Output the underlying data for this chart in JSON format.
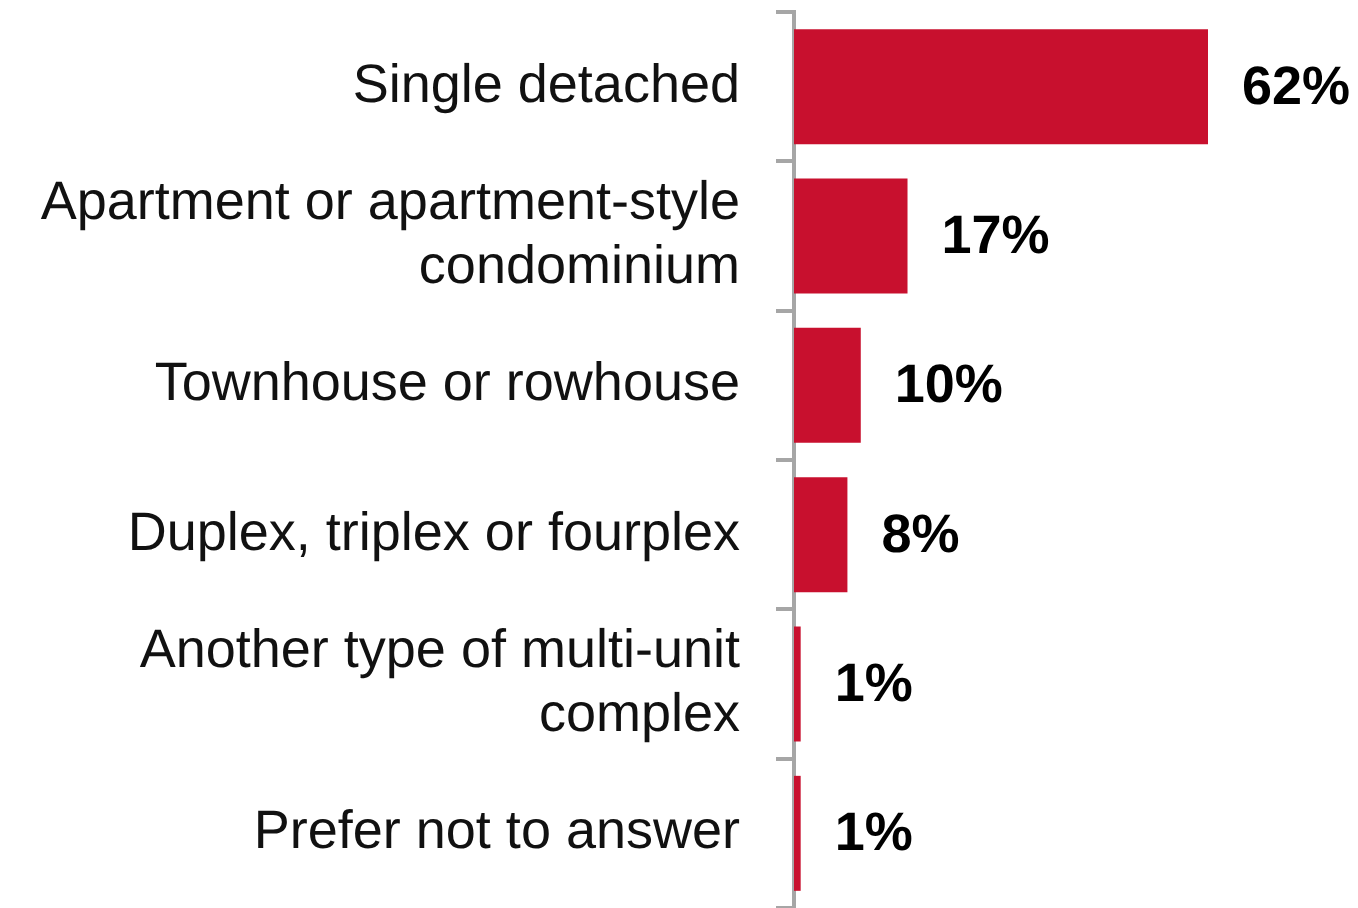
{
  "chart_data": {
    "type": "bar",
    "orientation": "horizontal",
    "categories": [
      "Single detached",
      "Apartment or apartment-style condominium",
      "Townhouse or rowhouse",
      "Duplex, triplex or fourplex",
      "Another type of multi-unit complex",
      "Prefer not to answer"
    ],
    "values": [
      62,
      17,
      10,
      8,
      1,
      1
    ],
    "color": "#c8102e",
    "value_labels": [
      "62%",
      "17%",
      "10%",
      "8%",
      "1%",
      "1%"
    ]
  }
}
